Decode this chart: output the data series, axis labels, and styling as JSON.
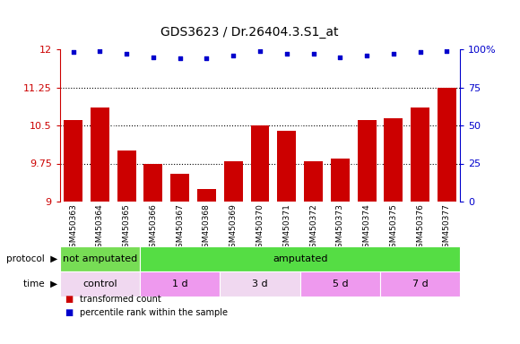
{
  "title": "GDS3623 / Dr.26404.3.S1_at",
  "samples": [
    "GSM450363",
    "GSM450364",
    "GSM450365",
    "GSM450366",
    "GSM450367",
    "GSM450368",
    "GSM450369",
    "GSM450370",
    "GSM450371",
    "GSM450372",
    "GSM450373",
    "GSM450374",
    "GSM450375",
    "GSM450376",
    "GSM450377"
  ],
  "bar_values": [
    10.6,
    10.85,
    10.0,
    9.75,
    9.55,
    9.25,
    9.8,
    10.5,
    10.4,
    9.8,
    9.85,
    10.6,
    10.65,
    10.85,
    11.25
  ],
  "dot_values": [
    98,
    99,
    97,
    95,
    94,
    94,
    96,
    99,
    97,
    97,
    95,
    96,
    97,
    98,
    99
  ],
  "ylim_left": [
    9.0,
    12.0
  ],
  "ylim_right": [
    0,
    100
  ],
  "yticks_left": [
    9.0,
    9.75,
    10.5,
    11.25,
    12.0
  ],
  "yticks_right": [
    0,
    25,
    50,
    75,
    100
  ],
  "ytick_labels_left": [
    "9",
    "9.75",
    "10.5",
    "11.25",
    "12"
  ],
  "ytick_labels_right": [
    "0",
    "25",
    "50",
    "75",
    "100%"
  ],
  "bar_color": "#cc0000",
  "dot_color": "#0000cc",
  "protocol_groups": [
    {
      "label": "not amputated",
      "start": 0,
      "end": 3,
      "color": "#77dd55"
    },
    {
      "label": "amputated",
      "start": 3,
      "end": 15,
      "color": "#55dd44"
    }
  ],
  "time_groups": [
    {
      "label": "control",
      "start": 0,
      "end": 3,
      "color": "#f0d8f0"
    },
    {
      "label": "1 d",
      "start": 3,
      "end": 6,
      "color": "#ee99ee"
    },
    {
      "label": "3 d",
      "start": 6,
      "end": 9,
      "color": "#f0d8f0"
    },
    {
      "label": "5 d",
      "start": 9,
      "end": 12,
      "color": "#ee99ee"
    },
    {
      "label": "7 d",
      "start": 12,
      "end": 15,
      "color": "#ee99ee"
    }
  ],
  "legend_items": [
    {
      "label": "transformed count",
      "color": "#cc0000"
    },
    {
      "label": "percentile rank within the sample",
      "color": "#0000cc"
    }
  ],
  "plot_bg": "#ffffff",
  "xtick_area_color": "#d8d8d8",
  "title_fontsize": 10,
  "tick_fontsize": 8,
  "label_fontsize": 8
}
